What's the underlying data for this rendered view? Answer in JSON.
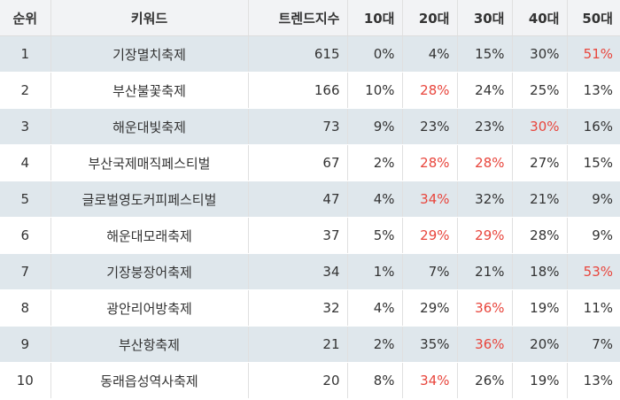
{
  "headers": {
    "rank": "순위",
    "keyword": "키워드",
    "trend": "트렌드지수",
    "a10": "10대",
    "a20": "20대",
    "a30": "30대",
    "a40": "40대",
    "a50": "50대"
  },
  "highlight_color": "#e8453c",
  "rows": [
    {
      "rank": "1",
      "keyword": "기장멸치축제",
      "trend": "615",
      "a10": "0%",
      "a20": "4%",
      "a30": "15%",
      "a40": "30%",
      "a50": "51%",
      "hot": [
        "a50"
      ]
    },
    {
      "rank": "2",
      "keyword": "부산불꽃축제",
      "trend": "166",
      "a10": "10%",
      "a20": "28%",
      "a30": "24%",
      "a40": "25%",
      "a50": "13%",
      "hot": [
        "a20"
      ]
    },
    {
      "rank": "3",
      "keyword": "해운대빛축제",
      "trend": "73",
      "a10": "9%",
      "a20": "23%",
      "a30": "23%",
      "a40": "30%",
      "a50": "16%",
      "hot": [
        "a40"
      ]
    },
    {
      "rank": "4",
      "keyword": "부산국제매직페스티벌",
      "trend": "67",
      "a10": "2%",
      "a20": "28%",
      "a30": "28%",
      "a40": "27%",
      "a50": "15%",
      "hot": [
        "a20",
        "a30"
      ]
    },
    {
      "rank": "5",
      "keyword": "글로벌영도커피페스티벌",
      "trend": "47",
      "a10": "4%",
      "a20": "34%",
      "a30": "32%",
      "a40": "21%",
      "a50": "9%",
      "hot": [
        "a20"
      ]
    },
    {
      "rank": "6",
      "keyword": "해운대모래축제",
      "trend": "37",
      "a10": "5%",
      "a20": "29%",
      "a30": "29%",
      "a40": "28%",
      "a50": "9%",
      "hot": [
        "a20",
        "a30"
      ]
    },
    {
      "rank": "7",
      "keyword": "기장붕장어축제",
      "trend": "34",
      "a10": "1%",
      "a20": "7%",
      "a30": "21%",
      "a40": "18%",
      "a50": "53%",
      "hot": [
        "a50"
      ]
    },
    {
      "rank": "8",
      "keyword": "광안리어방축제",
      "trend": "32",
      "a10": "4%",
      "a20": "29%",
      "a30": "36%",
      "a40": "19%",
      "a50": "11%",
      "hot": [
        "a30"
      ]
    },
    {
      "rank": "9",
      "keyword": "부산항축제",
      "trend": "21",
      "a10": "2%",
      "a20": "35%",
      "a30": "36%",
      "a40": "20%",
      "a50": "7%",
      "hot": [
        "a30"
      ]
    },
    {
      "rank": "10",
      "keyword": "동래읍성역사축제",
      "trend": "20",
      "a10": "8%",
      "a20": "34%",
      "a30": "26%",
      "a40": "19%",
      "a50": "13%",
      "hot": [
        "a20"
      ]
    }
  ]
}
